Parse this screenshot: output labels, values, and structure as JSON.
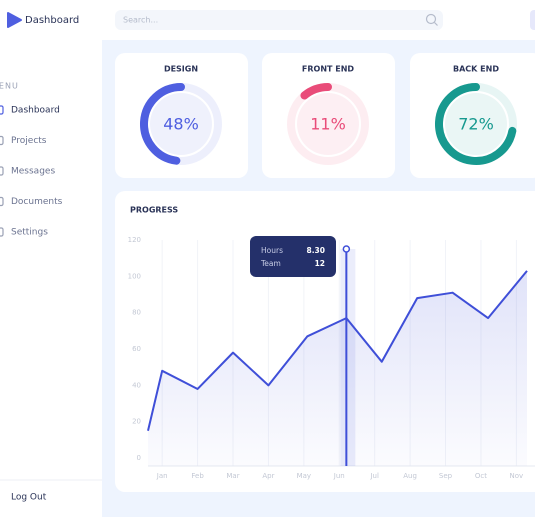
{
  "header": {
    "logo": "Dashboard",
    "search_placeholder": "Search..."
  },
  "sidebar": {
    "section": "MENU",
    "items": [
      "Dashboard",
      "Projects",
      "Messages",
      "Documents",
      "Settings"
    ],
    "active": 0,
    "logout": "Log Out"
  },
  "cards": [
    {
      "title": "DESIGN",
      "value": 48,
      "value_label": "48%",
      "color": "#4f5fe0"
    },
    {
      "title": "FRONT END",
      "value": 11,
      "value_label": "11%",
      "color": "#e94c79"
    },
    {
      "title": "BACK END",
      "value": 72,
      "value_label": "72%",
      "color": "#17998f"
    }
  ],
  "progress": {
    "type": "line",
    "title": "PROGRESS",
    "color": "#3f4fd8",
    "x": [
      0.6,
      1,
      2,
      3,
      4,
      5.1,
      6.2,
      7.2,
      8.2,
      9.2,
      10.2,
      11.3
    ],
    "values": [
      15,
      48,
      38,
      58,
      40,
      67,
      77,
      53,
      88,
      91,
      77,
      103
    ],
    "xlim": [
      0.6,
      11.3
    ],
    "xticks": [
      {
        "value": 1,
        "label": "Jan"
      },
      {
        "value": 2,
        "label": "Feb"
      },
      {
        "value": 3,
        "label": "Mar"
      },
      {
        "value": 4,
        "label": "Apr"
      },
      {
        "value": 5,
        "label": "May"
      },
      {
        "value": 6,
        "label": "Jun"
      },
      {
        "value": 7,
        "label": "Jul"
      },
      {
        "value": 8,
        "label": "Aug"
      },
      {
        "value": 9,
        "label": "Sep"
      },
      {
        "value": 10,
        "label": "Oct"
      },
      {
        "value": 11,
        "label": "Nov"
      }
    ],
    "ylim": [
      0,
      120
    ],
    "yticks": [
      0,
      20,
      40,
      60,
      80,
      100,
      120
    ],
    "grid": true,
    "cursor_x": 6.2,
    "tooltip": {
      "rows": [
        {
          "label": "Hours",
          "value": "8.30"
        },
        {
          "label": "Team",
          "value": "12"
        }
      ]
    }
  }
}
